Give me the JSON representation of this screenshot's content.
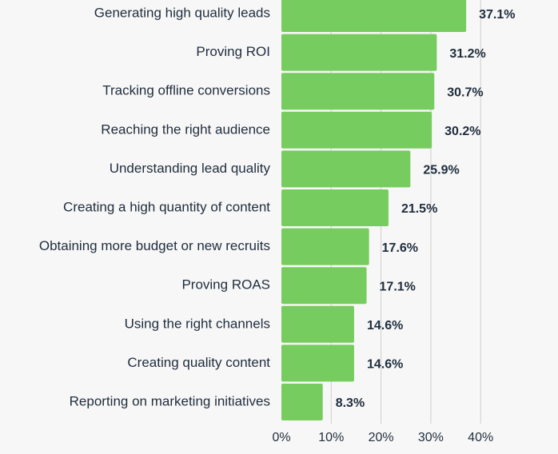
{
  "chart_data": {
    "type": "bar",
    "orientation": "horizontal",
    "categories": [
      "Generating high quality leads",
      "Proving ROI",
      "Tracking offline conversions",
      "Reaching the right audience",
      "Understanding lead quality",
      "Creating a high quantity of content",
      "Obtaining more budget or new recruits",
      "Proving ROAS",
      "Using the right channels",
      "Creating quality content",
      "Reporting on marketing initiatives"
    ],
    "values": [
      37.1,
      31.2,
      30.7,
      30.2,
      25.9,
      21.5,
      17.6,
      17.1,
      14.6,
      14.6,
      8.3
    ],
    "value_labels": [
      "37.1%",
      "31.2%",
      "30.7%",
      "30.2%",
      "25.9%",
      "21.5%",
      "17.6%",
      "17.1%",
      "14.6%",
      "14.6%",
      "8.3%"
    ],
    "x_ticks": [
      0,
      10,
      20,
      30,
      40
    ],
    "x_tick_labels": [
      "0%",
      "10%",
      "20%",
      "30%",
      "40%"
    ],
    "xlim": [
      0,
      40
    ],
    "grid": true,
    "colors": {
      "bar": "#77cc5f",
      "text": "#1f2d3d",
      "grid": "#cfcfcf",
      "background": "#f7f7f7"
    }
  }
}
